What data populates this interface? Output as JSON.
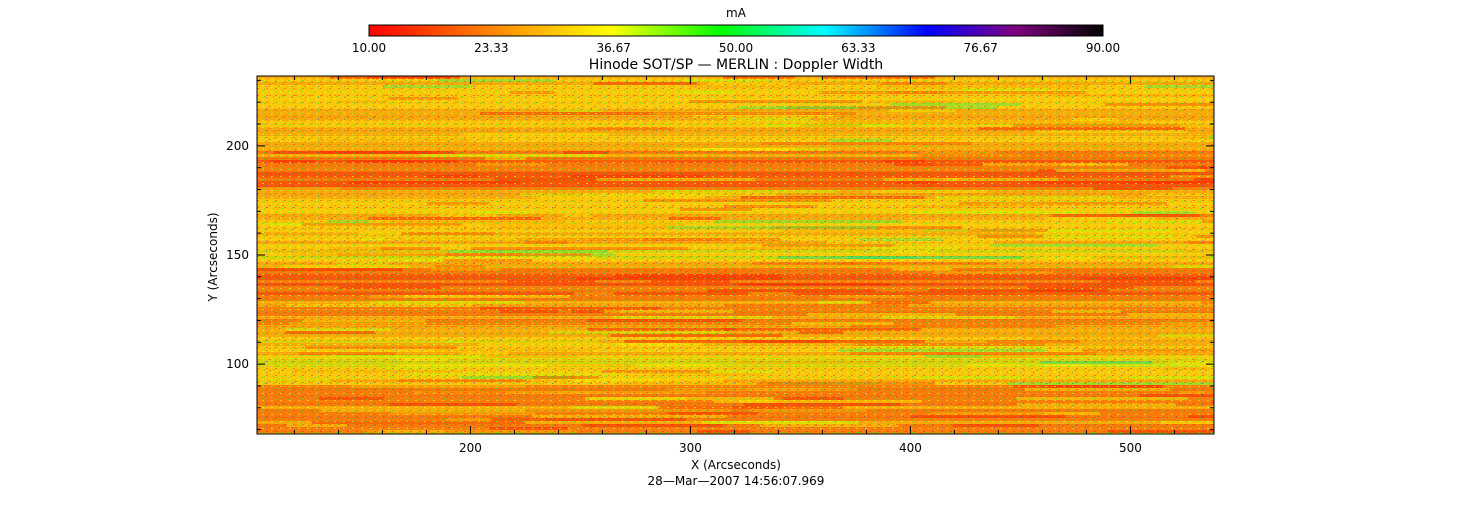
{
  "chart_data": {
    "type": "heatmap",
    "title": "Hinode SOT/SP — MERLIN : Doppler Width",
    "xlabel": "X (Arcseconds)",
    "ylabel": "Y (Arcseconds)",
    "timestamp": "28—Mar—2007 14:56:07.969",
    "xlim": [
      103,
      538
    ],
    "ylim": [
      68,
      232
    ],
    "x_ticks": [
      200,
      300,
      400,
      500
    ],
    "y_ticks": [
      100,
      150,
      200
    ],
    "x_tick_labels": [
      "200",
      "300",
      "400",
      "500"
    ],
    "y_tick_labels": [
      "100",
      "150",
      "200"
    ],
    "colorbar": {
      "unit": "mA",
      "range": [
        10,
        90
      ],
      "tick_labels": [
        "10.00",
        "23.33",
        "36.67",
        "50.00",
        "63.33",
        "76.67",
        "90.00"
      ],
      "colors": [
        "#ff0000",
        "#ff8000",
        "#ffff00",
        "#00ff00",
        "#00ffff",
        "#0000ff",
        "#800080",
        "#000000"
      ]
    },
    "dominant_value_range": [
      15,
      45
    ],
    "grid": false
  }
}
